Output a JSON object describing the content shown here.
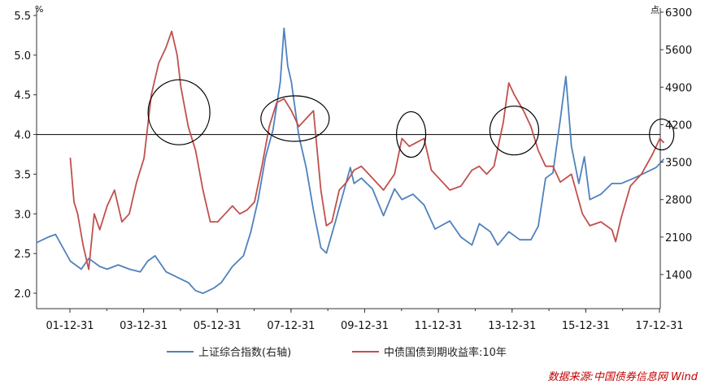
{
  "chart_data": {
    "type": "line",
    "y_unit_left": "%",
    "y_unit_right": "点",
    "ylim_left": [
      1.95,
      5.6
    ],
    "ylim_right": [
      700,
      6500
    ],
    "y_ticks_left": [
      "2.0",
      "2.5",
      "3.0",
      "3.5",
      "4.0",
      "4.5",
      "5.0",
      "5.5"
    ],
    "y_ticks_right": [
      "1400",
      "2100",
      "2800",
      "3500",
      "4200",
      "4900",
      "5600",
      "6300"
    ],
    "x_ticks": [
      "01-12-31",
      "03-12-31",
      "05-12-31",
      "07-12-31",
      "09-12-31",
      "11-12-31",
      "13-12-31",
      "15-12-31",
      "17-12-31"
    ],
    "x_tick_years": [
      2001.99,
      2003.99,
      2005.99,
      2007.99,
      2009.99,
      2011.99,
      2013.99,
      2015.99,
      2017.99
    ],
    "x_range": [
      2001.1,
      2018.1
    ],
    "reference_line": 4.0,
    "series": [
      {
        "name": "上证综合指数(右轴)",
        "color": "#4f81bd",
        "axis": "right",
        "points": [
          [
            2001.1,
            2000
          ],
          [
            2001.4,
            2100
          ],
          [
            2001.6,
            2150
          ],
          [
            2001.8,
            1900
          ],
          [
            2002.0,
            1650
          ],
          [
            2002.3,
            1500
          ],
          [
            2002.5,
            1700
          ],
          [
            2002.8,
            1550
          ],
          [
            2003.0,
            1500
          ],
          [
            2003.3,
            1580
          ],
          [
            2003.6,
            1500
          ],
          [
            2003.9,
            1450
          ],
          [
            2004.1,
            1650
          ],
          [
            2004.3,
            1750
          ],
          [
            2004.6,
            1450
          ],
          [
            2004.9,
            1350
          ],
          [
            2005.2,
            1250
          ],
          [
            2005.4,
            1100
          ],
          [
            2005.6,
            1050
          ],
          [
            2005.9,
            1150
          ],
          [
            2006.1,
            1250
          ],
          [
            2006.4,
            1550
          ],
          [
            2006.7,
            1750
          ],
          [
            2006.9,
            2200
          ],
          [
            2007.1,
            2800
          ],
          [
            2007.3,
            3600
          ],
          [
            2007.5,
            4100
          ],
          [
            2007.7,
            5000
          ],
          [
            2007.8,
            6000
          ],
          [
            2007.9,
            5300
          ],
          [
            2008.0,
            5000
          ],
          [
            2008.2,
            4000
          ],
          [
            2008.4,
            3400
          ],
          [
            2008.6,
            2600
          ],
          [
            2008.8,
            1900
          ],
          [
            2008.95,
            1800
          ],
          [
            2009.2,
            2400
          ],
          [
            2009.4,
            2900
          ],
          [
            2009.6,
            3400
          ],
          [
            2009.7,
            3100
          ],
          [
            2009.9,
            3200
          ],
          [
            2010.2,
            3000
          ],
          [
            2010.5,
            2500
          ],
          [
            2010.8,
            3000
          ],
          [
            2011.0,
            2800
          ],
          [
            2011.3,
            2900
          ],
          [
            2011.6,
            2700
          ],
          [
            2011.9,
            2250
          ],
          [
            2012.3,
            2400
          ],
          [
            2012.6,
            2100
          ],
          [
            2012.9,
            1950
          ],
          [
            2013.1,
            2350
          ],
          [
            2013.4,
            2200
          ],
          [
            2013.6,
            1950
          ],
          [
            2013.9,
            2200
          ],
          [
            2014.2,
            2050
          ],
          [
            2014.5,
            2050
          ],
          [
            2014.7,
            2300
          ],
          [
            2014.9,
            3200
          ],
          [
            2015.1,
            3300
          ],
          [
            2015.3,
            4300
          ],
          [
            2015.45,
            5100
          ],
          [
            2015.6,
            3800
          ],
          [
            2015.8,
            3100
          ],
          [
            2015.95,
            3600
          ],
          [
            2016.1,
            2800
          ],
          [
            2016.4,
            2900
          ],
          [
            2016.7,
            3100
          ],
          [
            2016.95,
            3100
          ],
          [
            2017.3,
            3200
          ],
          [
            2017.6,
            3300
          ],
          [
            2017.9,
            3400
          ],
          [
            2018.1,
            3550
          ]
        ]
      },
      {
        "name": "中债国债到期收益率:10年",
        "color": "#c0504d",
        "axis": "left",
        "points": [
          [
            2002.0,
            3.7
          ],
          [
            2002.1,
            3.15
          ],
          [
            2002.2,
            3.0
          ],
          [
            2002.35,
            2.6
          ],
          [
            2002.5,
            2.3
          ],
          [
            2002.65,
            3.0
          ],
          [
            2002.8,
            2.8
          ],
          [
            2003.0,
            3.1
          ],
          [
            2003.2,
            3.3
          ],
          [
            2003.4,
            2.9
          ],
          [
            2003.6,
            3.0
          ],
          [
            2003.8,
            3.4
          ],
          [
            2004.0,
            3.7
          ],
          [
            2004.2,
            4.5
          ],
          [
            2004.4,
            4.9
          ],
          [
            2004.6,
            5.1
          ],
          [
            2004.75,
            5.3
          ],
          [
            2004.9,
            5.0
          ],
          [
            2005.0,
            4.6
          ],
          [
            2005.2,
            4.1
          ],
          [
            2005.4,
            3.8
          ],
          [
            2005.6,
            3.3
          ],
          [
            2005.8,
            2.9
          ],
          [
            2006.0,
            2.9
          ],
          [
            2006.2,
            3.0
          ],
          [
            2006.4,
            3.1
          ],
          [
            2006.6,
            3.0
          ],
          [
            2006.8,
            3.05
          ],
          [
            2007.0,
            3.15
          ],
          [
            2007.2,
            3.6
          ],
          [
            2007.4,
            4.1
          ],
          [
            2007.6,
            4.4
          ],
          [
            2007.8,
            4.45
          ],
          [
            2008.0,
            4.3
          ],
          [
            2008.2,
            4.1
          ],
          [
            2008.4,
            4.2
          ],
          [
            2008.6,
            4.3
          ],
          [
            2008.8,
            3.3
          ],
          [
            2008.95,
            2.85
          ],
          [
            2009.1,
            2.9
          ],
          [
            2009.3,
            3.3
          ],
          [
            2009.5,
            3.4
          ],
          [
            2009.7,
            3.55
          ],
          [
            2009.9,
            3.6
          ],
          [
            2010.2,
            3.45
          ],
          [
            2010.5,
            3.3
          ],
          [
            2010.8,
            3.5
          ],
          [
            2011.0,
            3.95
          ],
          [
            2011.2,
            3.85
          ],
          [
            2011.4,
            3.9
          ],
          [
            2011.6,
            3.95
          ],
          [
            2011.8,
            3.55
          ],
          [
            2012.0,
            3.45
          ],
          [
            2012.3,
            3.3
          ],
          [
            2012.6,
            3.35
          ],
          [
            2012.9,
            3.55
          ],
          [
            2013.1,
            3.6
          ],
          [
            2013.3,
            3.5
          ],
          [
            2013.5,
            3.6
          ],
          [
            2013.75,
            4.15
          ],
          [
            2013.9,
            4.65
          ],
          [
            2014.05,
            4.5
          ],
          [
            2014.3,
            4.3
          ],
          [
            2014.5,
            4.1
          ],
          [
            2014.7,
            3.8
          ],
          [
            2014.9,
            3.6
          ],
          [
            2015.1,
            3.6
          ],
          [
            2015.3,
            3.4
          ],
          [
            2015.6,
            3.5
          ],
          [
            2015.9,
            3.0
          ],
          [
            2016.1,
            2.85
          ],
          [
            2016.4,
            2.9
          ],
          [
            2016.7,
            2.8
          ],
          [
            2016.8,
            2.65
          ],
          [
            2016.95,
            2.95
          ],
          [
            2017.2,
            3.35
          ],
          [
            2017.5,
            3.5
          ],
          [
            2017.8,
            3.75
          ],
          [
            2018.0,
            3.95
          ],
          [
            2018.1,
            3.9
          ]
        ]
      }
    ],
    "circle_markers": [
      {
        "x": 2004.95,
        "y": 4.28
      },
      {
        "x": 2008.1,
        "y": 4.2
      },
      {
        "x": 2011.25,
        "y": 4.0
      },
      {
        "x": 2014.05,
        "y": 4.05
      },
      {
        "x": 2018.05,
        "y": 4.0
      }
    ],
    "legend": [
      {
        "label": "上证综合指数(右轴)",
        "color": "#4f81bd"
      },
      {
        "label": "中债国债到期收益率:10年",
        "color": "#c0504d"
      }
    ]
  },
  "source_note": "数据来源:中国债券信息网 Wind"
}
